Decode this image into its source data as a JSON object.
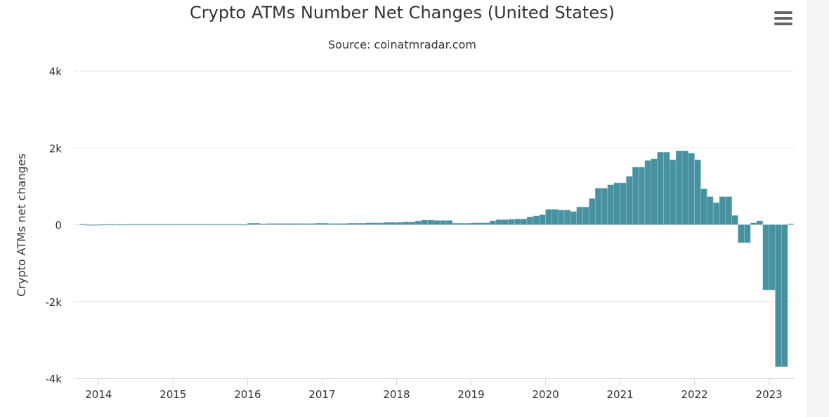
{
  "chart_data": {
    "type": "bar",
    "title": "Crypto ATMs Number Net Changes (United States)",
    "subtitle": "Source: coinatmradar.com",
    "ylabel": "Crypto ATMs net changes",
    "xlabel": "",
    "ylim": [
      -4000,
      4000
    ],
    "yticks": [
      {
        "v": 4000,
        "label": "4k"
      },
      {
        "v": 2000,
        "label": "2k"
      },
      {
        "v": 0,
        "label": "0"
      },
      {
        "v": -2000,
        "label": "-2k"
      },
      {
        "v": -4000,
        "label": "-4k"
      }
    ],
    "xlim": [
      "2013-09",
      "2023-05"
    ],
    "xticks": [
      "2014",
      "2015",
      "2016",
      "2017",
      "2018",
      "2019",
      "2020",
      "2021",
      "2022",
      "2023"
    ],
    "grid": true,
    "bar_color": "#4791a1",
    "start_month": "2013-10",
    "values": [
      15,
      0,
      0,
      5,
      10,
      10,
      5,
      10,
      10,
      10,
      10,
      10,
      10,
      10,
      10,
      10,
      10,
      10,
      10,
      10,
      10,
      10,
      10,
      10,
      10,
      10,
      5,
      40,
      40,
      20,
      30,
      30,
      30,
      30,
      30,
      30,
      30,
      30,
      40,
      40,
      30,
      30,
      30,
      40,
      40,
      40,
      50,
      50,
      50,
      60,
      60,
      60,
      70,
      70,
      100,
      120,
      120,
      110,
      110,
      110,
      40,
      40,
      40,
      50,
      50,
      50,
      100,
      130,
      130,
      140,
      150,
      150,
      200,
      230,
      260,
      400,
      400,
      380,
      380,
      340,
      460,
      460,
      680,
      950,
      950,
      1040,
      1090,
      1090,
      1260,
      1500,
      1500,
      1670,
      1715,
      1890,
      1890,
      1690,
      1920,
      1920,
      1860,
      1690,
      930,
      730,
      570,
      730,
      730,
      240,
      -470,
      -470,
      50,
      100,
      -1700,
      -1700,
      -3700,
      -3700,
      20
    ]
  },
  "menu": {
    "icon": "hamburger-menu-icon"
  }
}
